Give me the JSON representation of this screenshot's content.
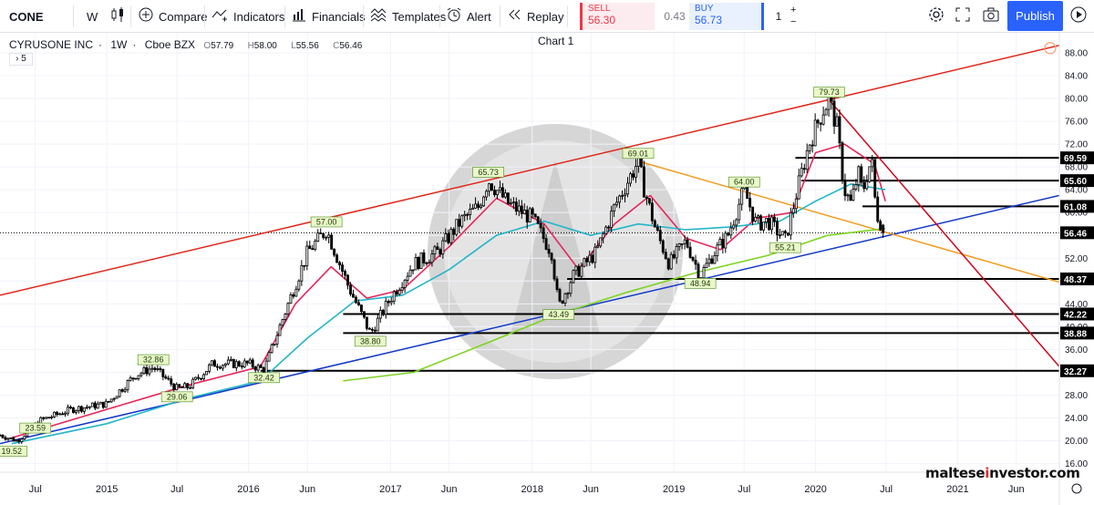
{
  "toolbar": {
    "symbol": "CONE",
    "interval": "W",
    "compare": "Compare",
    "indicators": "Indicators",
    "financials": "Financials",
    "templates": "Templates",
    "alert": "Alert",
    "replay": "Replay",
    "sell_label": "SELL",
    "sell_price": "56.30",
    "spread": "0.43",
    "buy_label": "BUY",
    "buy_price": "56.73",
    "quantity": "1",
    "publish": "Publish"
  },
  "legend": {
    "name": "CYRUSONE INC",
    "interval": "1W",
    "exchange": "Cboe BZX",
    "o": "57.79",
    "h": "58.00",
    "l": "55.56",
    "c": "56.46",
    "indicators_count": "5"
  },
  "chart_title": "Chart 1",
  "watermark": {
    "pre": "maltese",
    "mid": "i",
    "post": "nvestor.com"
  },
  "colors": {
    "up": "#000000",
    "down": "#000000",
    "red_channel": "#e0261b",
    "blue_channel": "#1238c9",
    "orange_line": "#f29b1d",
    "crimson_downtrend": "#d0021b",
    "ma_pink": "#e5255a",
    "ma_cyan": "#22b5c8",
    "ma_green": "#7ed321",
    "accent": "#2962ff"
  },
  "chart_data": {
    "type": "candlestick",
    "symbol": "CONE",
    "interval": "1W",
    "ylim": [
      14.5,
      91.5
    ],
    "y_ticks": [
      16,
      20,
      24,
      28,
      32,
      36,
      40,
      44,
      48,
      52,
      56,
      60,
      64,
      68,
      72,
      76,
      80,
      84,
      88
    ],
    "x_ticks": [
      "Jul",
      "2015",
      "Jul",
      "2016",
      "Jun",
      "2017",
      "Jun",
      "2018",
      "Jun",
      "2019",
      "Jul",
      "2020",
      "Jul",
      "2021",
      "Jun"
    ],
    "x_tick_dates": [
      "2014-07-01",
      "2015-01-01",
      "2015-07-01",
      "2016-01-01",
      "2016-06-01",
      "2017-01-01",
      "2017-06-01",
      "2018-01-01",
      "2018-06-01",
      "2019-01-01",
      "2019-07-01",
      "2020-01-01",
      "2020-07-01",
      "2021-01-01",
      "2021-06-01"
    ],
    "price_path": [
      [
        "2014-04-01",
        21.0
      ],
      [
        "2014-05-15",
        20.0
      ],
      [
        "2014-07-15",
        23.6
      ],
      [
        "2014-10-01",
        25.5
      ],
      [
        "2015-01-01",
        26.5
      ],
      [
        "2015-03-15",
        31.5
      ],
      [
        "2015-05-01",
        32.86
      ],
      [
        "2015-07-01",
        29.1
      ],
      [
        "2015-08-01",
        29.5
      ],
      [
        "2015-10-01",
        33.5
      ],
      [
        "2016-01-01",
        33.5
      ],
      [
        "2016-02-10",
        32.42
      ],
      [
        "2016-04-15",
        44.5
      ],
      [
        "2016-06-01",
        53.0
      ],
      [
        "2016-07-20",
        57.0
      ],
      [
        "2016-09-15",
        47.0
      ],
      [
        "2016-11-10",
        38.8
      ],
      [
        "2017-01-01",
        45.0
      ],
      [
        "2017-03-01",
        51.0
      ],
      [
        "2017-05-01",
        53.0
      ],
      [
        "2017-07-01",
        58.5
      ],
      [
        "2017-08-15",
        61.0
      ],
      [
        "2017-09-10",
        65.73
      ],
      [
        "2017-11-01",
        61.5
      ],
      [
        "2018-01-01",
        59.0
      ],
      [
        "2018-02-20",
        53.0
      ],
      [
        "2018-03-10",
        43.49
      ],
      [
        "2018-04-15",
        48.8
      ],
      [
        "2018-06-15",
        53.0
      ],
      [
        "2018-08-01",
        61.0
      ],
      [
        "2018-10-01",
        69.01
      ],
      [
        "2018-10-15",
        64.5
      ],
      [
        "2018-11-15",
        57.0
      ],
      [
        "2018-12-20",
        51.0
      ],
      [
        "2019-02-01",
        55.0
      ],
      [
        "2019-03-10",
        48.94
      ],
      [
        "2019-04-15",
        53.0
      ],
      [
        "2019-05-20",
        56.0
      ],
      [
        "2019-07-01",
        64.0
      ],
      [
        "2019-08-01",
        58.0
      ],
      [
        "2019-09-01",
        58.5
      ],
      [
        "2019-10-15",
        55.21
      ],
      [
        "2019-11-15",
        64.0
      ],
      [
        "2019-12-15",
        72.0
      ],
      [
        "2020-01-20",
        78.0
      ],
      [
        "2020-02-05",
        79.73
      ],
      [
        "2020-02-25",
        75.0
      ],
      [
        "2020-03-15",
        64.0
      ],
      [
        "2020-04-01",
        61.5
      ],
      [
        "2020-04-20",
        67.0
      ],
      [
        "2020-05-01",
        63.5
      ],
      [
        "2020-05-15",
        67.5
      ],
      [
        "2020-05-25",
        69.0
      ],
      [
        "2020-06-05",
        60.0
      ],
      [
        "2020-06-20",
        57.8
      ],
      [
        "2020-06-29",
        56.46
      ]
    ],
    "last_bar": {
      "o": 57.79,
      "h": 58.0,
      "l": 55.56,
      "c": 56.46
    },
    "peak_trough_labels": [
      {
        "text": "19.52",
        "date": "2014-05-01",
        "y": 19.52,
        "pos": "below"
      },
      {
        "text": "23.59",
        "date": "2014-07-01",
        "y": 23.59,
        "pos": "below"
      },
      {
        "text": "32.86",
        "date": "2015-05-01",
        "y": 32.86,
        "pos": "above"
      },
      {
        "text": "29.06",
        "date": "2015-07-01",
        "y": 29.06,
        "pos": "below"
      },
      {
        "text": "32.42",
        "date": "2016-02-10",
        "y": 32.42,
        "pos": "below"
      },
      {
        "text": "57.00",
        "date": "2016-07-20",
        "y": 57.0,
        "pos": "above"
      },
      {
        "text": "38.80",
        "date": "2016-11-10",
        "y": 38.8,
        "pos": "below"
      },
      {
        "text": "65.73",
        "date": "2017-09-10",
        "y": 65.73,
        "pos": "above"
      },
      {
        "text": "43.49",
        "date": "2018-03-10",
        "y": 43.49,
        "pos": "below"
      },
      {
        "text": "69.01",
        "date": "2018-10-01",
        "y": 69.01,
        "pos": "above"
      },
      {
        "text": "48.94",
        "date": "2019-03-10",
        "y": 48.94,
        "pos": "below"
      },
      {
        "text": "64.00",
        "date": "2019-07-01",
        "y": 64.0,
        "pos": "above"
      },
      {
        "text": "55.21",
        "date": "2019-10-15",
        "y": 55.21,
        "pos": "below"
      },
      {
        "text": "79.73",
        "date": "2020-02-05",
        "y": 79.73,
        "pos": "above"
      }
    ],
    "horizontal_levels": [
      {
        "price": 69.59,
        "label": "69.59",
        "from": "2019-11-10"
      },
      {
        "price": 65.6,
        "label": "65.60",
        "from": "2019-11-25"
      },
      {
        "price": 61.08,
        "label": "61.08",
        "from": "2020-05-01"
      },
      {
        "price": 56.46,
        "label": "56.46",
        "from": "2014-04-01",
        "dotted": true
      },
      {
        "price": 48.37,
        "label": "48.37",
        "from": "2018-04-01"
      },
      {
        "price": 42.22,
        "label": "42.22",
        "from": "2016-09-01"
      },
      {
        "price": 38.88,
        "label": "38.88",
        "from": "2016-09-01"
      },
      {
        "price": 32.27,
        "label": "32.27",
        "from": "2016-02-01"
      }
    ],
    "trendlines": [
      {
        "name": "red_channel",
        "p1": [
          "2014-04-01",
          45.5
        ],
        "p2": [
          "2021-09-20",
          89.3
        ]
      },
      {
        "name": "blue_channel",
        "p1": [
          "2014-04-01",
          19.5
        ],
        "p2": [
          "2021-09-20",
          63.0
        ]
      },
      {
        "name": "orange_line",
        "p1": [
          "2018-10-01",
          69.01
        ],
        "p2": [
          "2021-09-20",
          47.8
        ]
      },
      {
        "name": "crimson_downtrend",
        "p1": [
          "2020-02-05",
          79.73
        ],
        "p2": [
          "2021-09-20",
          33.0
        ]
      }
    ],
    "moving_averages": [
      {
        "name": "ma_pink",
        "points": [
          [
            "2014-05-01",
            20.5
          ],
          [
            "2015-01-01",
            25.5
          ],
          [
            "2015-08-01",
            29.8
          ],
          [
            "2016-02-01",
            33.0
          ],
          [
            "2016-05-01",
            44.0
          ],
          [
            "2016-08-01",
            50.5
          ],
          [
            "2016-11-01",
            45.0
          ],
          [
            "2017-02-01",
            46.5
          ],
          [
            "2017-06-01",
            54.0
          ],
          [
            "2017-10-01",
            62.5
          ],
          [
            "2018-02-01",
            58.0
          ],
          [
            "2018-05-01",
            50.0
          ],
          [
            "2018-08-01",
            58.0
          ],
          [
            "2018-11-01",
            63.0
          ],
          [
            "2019-02-01",
            55.5
          ],
          [
            "2019-05-01",
            53.5
          ],
          [
            "2019-08-01",
            59.0
          ],
          [
            "2019-11-01",
            60.0
          ],
          [
            "2020-01-01",
            70.5
          ],
          [
            "2020-03-15",
            72.0
          ],
          [
            "2020-06-01",
            68.5
          ],
          [
            "2020-06-29",
            62.0
          ]
        ]
      },
      {
        "name": "ma_cyan",
        "points": [
          [
            "2014-05-01",
            19.5
          ],
          [
            "2015-01-01",
            23.0
          ],
          [
            "2015-08-01",
            27.5
          ],
          [
            "2016-02-01",
            30.5
          ],
          [
            "2016-06-01",
            38.0
          ],
          [
            "2016-10-01",
            44.5
          ],
          [
            "2017-02-01",
            45.5
          ],
          [
            "2017-06-01",
            50.0
          ],
          [
            "2017-10-01",
            56.0
          ],
          [
            "2018-02-01",
            58.5
          ],
          [
            "2018-06-01",
            56.0
          ],
          [
            "2018-10-01",
            58.0
          ],
          [
            "2019-02-01",
            57.0
          ],
          [
            "2019-06-01",
            57.5
          ],
          [
            "2019-10-01",
            58.5
          ],
          [
            "2020-01-01",
            62.0
          ],
          [
            "2020-04-01",
            65.0
          ],
          [
            "2020-06-29",
            64.0
          ]
        ]
      },
      {
        "name": "ma_green",
        "points": [
          [
            "2016-09-01",
            30.5
          ],
          [
            "2017-03-01",
            32.0
          ],
          [
            "2017-09-01",
            37.0
          ],
          [
            "2018-03-01",
            42.0
          ],
          [
            "2018-09-01",
            46.0
          ],
          [
            "2019-03-01",
            49.5
          ],
          [
            "2019-09-01",
            52.5
          ],
          [
            "2020-02-01",
            56.0
          ],
          [
            "2020-06-29",
            57.2
          ]
        ]
      }
    ]
  }
}
